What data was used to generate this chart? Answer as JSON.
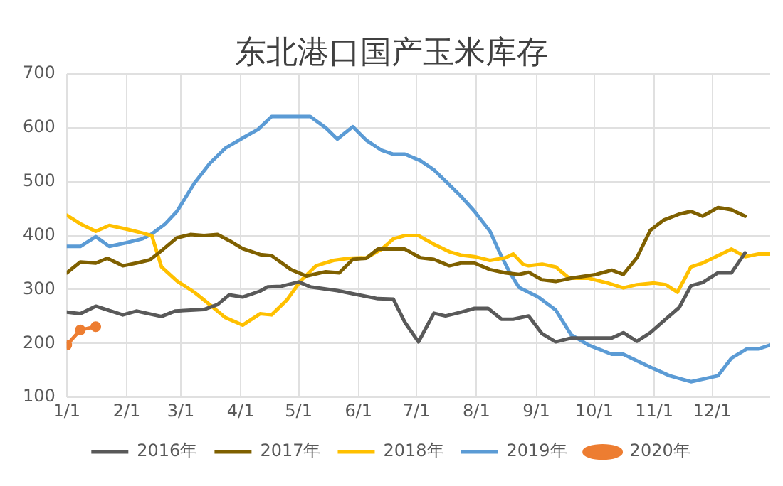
{
  "chart_data": {
    "type": "line",
    "title": "东北港口国产玉米库存",
    "xlim": [
      "--01-01",
      "--12-31"
    ],
    "xticks": [
      {
        "value": "--01-01",
        "label": "1/1"
      },
      {
        "value": "--02-01",
        "label": "2/1"
      },
      {
        "value": "--03-01",
        "label": "3/1"
      },
      {
        "value": "--04-01",
        "label": "4/1"
      },
      {
        "value": "--05-01",
        "label": "5/1"
      },
      {
        "value": "--06-01",
        "label": "6/1"
      },
      {
        "value": "--07-01",
        "label": "7/1"
      },
      {
        "value": "--08-01",
        "label": "8/1"
      },
      {
        "value": "--09-01",
        "label": "9/1"
      },
      {
        "value": "--10-01",
        "label": "10/1"
      },
      {
        "value": "--11-01",
        "label": "11/1"
      },
      {
        "value": "--12-01",
        "label": "12/1"
      }
    ],
    "ylim": [
      100,
      700
    ],
    "yticks": [
      100,
      200,
      300,
      400,
      500,
      600,
      700
    ],
    "grid": true,
    "legend": "bottom",
    "marker": "none",
    "line_style": "solid",
    "series": [
      {
        "name": "2016年",
        "color": "#595959",
        "x": [
          "--01-01",
          "--01-08",
          "--01-16",
          "--01-30",
          "--02-06",
          "--02-19",
          "--02-26",
          "--03-13",
          "--03-20",
          "--03-26",
          "--04-02",
          "--04-11",
          "--04-15",
          "--04-22",
          "--05-01",
          "--05-07",
          "--05-21",
          "--06-01",
          "--06-11",
          "--06-19",
          "--06-25",
          "--07-02",
          "--07-10",
          "--07-16",
          "--07-24",
          "--07-31",
          "--08-07",
          "--08-14",
          "--08-20",
          "--08-28",
          "--09-04",
          "--09-11",
          "--09-19",
          "--10-02",
          "--10-10",
          "--10-16",
          "--10-23",
          "--10-30",
          "--11-06",
          "--11-14",
          "--11-20",
          "--11-26",
          "--12-04",
          "--12-11",
          "--12-18"
        ],
        "values": [
          258,
          255,
          269,
          253,
          260,
          250,
          260,
          263,
          272,
          290,
          286,
          297,
          305,
          306,
          314,
          305,
          298,
          290,
          283,
          282,
          239,
          203,
          256,
          251,
          258,
          265,
          265,
          245,
          245,
          251,
          218,
          203,
          210,
          210,
          210,
          220,
          204,
          220,
          242,
          267,
          307,
          313,
          331,
          331,
          368
        ]
      },
      {
        "name": "2017年",
        "color": "#7f6000",
        "x": [
          "--01-01",
          "--01-08",
          "--01-16",
          "--01-22",
          "--01-30",
          "--02-06",
          "--02-13",
          "--02-19",
          "--02-27",
          "--03-06",
          "--03-13",
          "--03-20",
          "--03-26",
          "--04-02",
          "--04-11",
          "--04-17",
          "--04-27",
          "--05-05",
          "--05-15",
          "--05-22",
          "--05-29",
          "--06-05",
          "--06-11",
          "--06-25",
          "--07-03",
          "--07-10",
          "--07-18",
          "--07-24",
          "--07-31",
          "--08-08",
          "--08-16",
          "--08-23",
          "--08-28",
          "--09-04",
          "--09-11",
          "--09-19",
          "--10-02",
          "--10-10",
          "--10-16",
          "--10-23",
          "--10-30",
          "--11-06",
          "--11-14",
          "--11-20",
          "--11-26",
          "--12-04",
          "--12-11",
          "--12-18"
        ],
        "values": [
          331,
          351,
          349,
          358,
          344,
          349,
          355,
          372,
          396,
          402,
          400,
          402,
          391,
          376,
          365,
          363,
          337,
          325,
          333,
          331,
          356,
          358,
          375,
          375,
          359,
          356,
          344,
          349,
          349,
          337,
          331,
          328,
          332,
          318,
          315,
          321,
          328,
          336,
          328,
          359,
          410,
          429,
          440,
          445,
          436,
          452,
          448,
          436
        ]
      },
      {
        "name": "2018年",
        "color": "#ffc000",
        "x": [
          "--01-01",
          "--01-08",
          "--01-16",
          "--01-23",
          "--02-01",
          "--02-09",
          "--02-14",
          "--02-19",
          "--02-27",
          "--03-08",
          "--03-16",
          "--03-24",
          "--04-02",
          "--04-11",
          "--04-17",
          "--04-25",
          "--05-02",
          "--05-10",
          "--05-19",
          "--05-27",
          "--06-05",
          "--06-13",
          "--06-19",
          "--06-25",
          "--07-02",
          "--07-10",
          "--07-18",
          "--07-24",
          "--07-31",
          "--08-08",
          "--08-16",
          "--08-20",
          "--08-25",
          "--08-28",
          "--09-04",
          "--09-11",
          "--09-18",
          "--09-28",
          "--10-08",
          "--10-16",
          "--10-23",
          "--11-01",
          "--11-07",
          "--11-13",
          "--11-20",
          "--11-26",
          "--12-04",
          "--12-11",
          "--12-18",
          "--12-25",
          "--12-31"
        ],
        "values": [
          438,
          422,
          408,
          419,
          412,
          405,
          400,
          342,
          316,
          295,
          272,
          248,
          234,
          255,
          253,
          281,
          316,
          344,
          354,
          358,
          359,
          375,
          394,
          400,
          400,
          384,
          370,
          364,
          361,
          354,
          359,
          366,
          347,
          344,
          347,
          342,
          321,
          321,
          312,
          303,
          309,
          312,
          309,
          295,
          342,
          349,
          363,
          375,
          361,
          366,
          366
        ]
      },
      {
        "name": "2019年",
        "color": "#5b9bd5",
        "x": [
          "--01-01",
          "--01-08",
          "--01-16",
          "--01-23",
          "--02-01",
          "--02-09",
          "--02-14",
          "--02-21",
          "--02-27",
          "--03-08",
          "--03-16",
          "--03-24",
          "--04-02",
          "--04-10",
          "--04-17",
          "--05-07",
          "--05-15",
          "--05-21",
          "--05-29",
          "--06-05",
          "--06-13",
          "--06-19",
          "--06-25",
          "--07-03",
          "--07-10",
          "--07-18",
          "--07-24",
          "--07-31",
          "--08-08",
          "--08-14",
          "--08-18",
          "--08-23",
          "--09-02",
          "--09-11",
          "--09-19",
          "--09-28",
          "--10-10",
          "--10-16",
          "--10-30",
          "--11-09",
          "--11-20",
          "--12-04",
          "--12-11",
          "--12-19",
          "--12-25",
          "--12-31"
        ],
        "values": [
          380,
          380,
          398,
          380,
          387,
          394,
          403,
          422,
          445,
          497,
          534,
          562,
          581,
          597,
          621,
          621,
          600,
          579,
          602,
          577,
          558,
          551,
          551,
          539,
          522,
          494,
          473,
          445,
          408,
          361,
          333,
          304,
          286,
          262,
          216,
          197,
          180,
          180,
          156,
          140,
          129,
          140,
          173,
          190,
          190,
          197
        ]
      },
      {
        "name": "2020年",
        "color": "#ed7d31",
        "marker": "circle",
        "x": [
          "--01-01",
          "--01-08",
          "--01-16"
        ],
        "values": [
          197,
          225,
          231
        ]
      }
    ]
  }
}
